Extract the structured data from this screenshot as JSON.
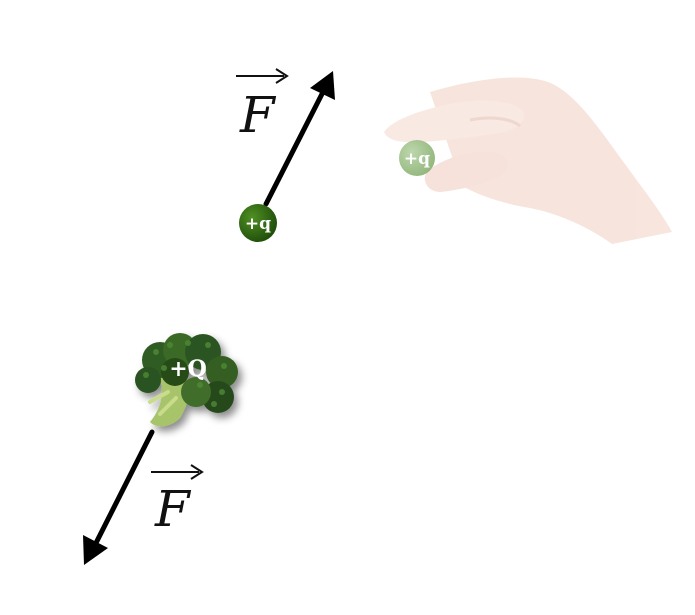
{
  "labels": {
    "force_top": "F",
    "force_bottom": "F",
    "test_charge": "+q",
    "test_charge_faded": "+q",
    "source_charge": "+Q"
  },
  "colors": {
    "test_charge_fill": "#2f6b12",
    "faded_charge_fill": "#9cc08a",
    "broccoli_dark": "#25481a",
    "broccoli_mid": "#3f6d2a",
    "broccoli_stem": "#a7c46a",
    "hand_skin": "#f6ddd2",
    "arrow": "#000000"
  },
  "icons": {
    "hand": "hand-icon",
    "broccoli": "broccoli-icon",
    "vector_arrow": "arrow-icon"
  }
}
